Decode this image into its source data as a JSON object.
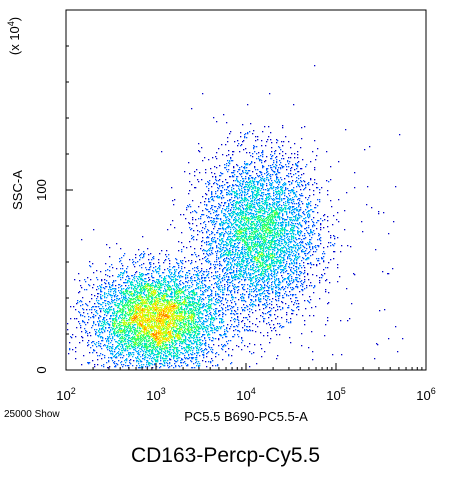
{
  "chart_data": {
    "type": "scatter",
    "subtype": "flow-cytometry-density-dot-plot",
    "x_axis": {
      "label": "PC5.5 B690-PC5.5-A",
      "scale": "log",
      "range": [
        100,
        1000000
      ],
      "ticks": [
        {
          "value": 100,
          "base": "10",
          "exp": "2"
        },
        {
          "value": 1000,
          "base": "10",
          "exp": "3"
        },
        {
          "value": 10000,
          "base": "10",
          "exp": "4"
        },
        {
          "value": 100000,
          "base": "10",
          "exp": "5"
        },
        {
          "value": 1000000,
          "base": "10",
          "exp": "6"
        }
      ]
    },
    "y_axis": {
      "label": "SSC-A",
      "scale": "linear",
      "range": [
        0,
        200
      ],
      "multiplier_prefix": "(x 10",
      "multiplier_exp": "4",
      "multiplier_suffix": ")",
      "ticks": [
        {
          "value": 0,
          "label": "0"
        },
        {
          "value": 100,
          "label": "100"
        }
      ]
    },
    "event_note": "25000 Show",
    "populations": [
      {
        "center_x": 1000,
        "center_y": 28,
        "spread_log_x": 0.35,
        "spread_y": 14,
        "events": 14000
      },
      {
        "center_x": 14000,
        "center_y": 75,
        "spread_log_x": 0.32,
        "spread_y": 22,
        "events": 10500
      }
    ],
    "color_scale": [
      "#0000cc",
      "#0055ff",
      "#00aaff",
      "#00e0d0",
      "#30ff70",
      "#c0ff20",
      "#ffe000",
      "#ff8800"
    ]
  },
  "caption": "CD163-Percp-Cy5.5"
}
